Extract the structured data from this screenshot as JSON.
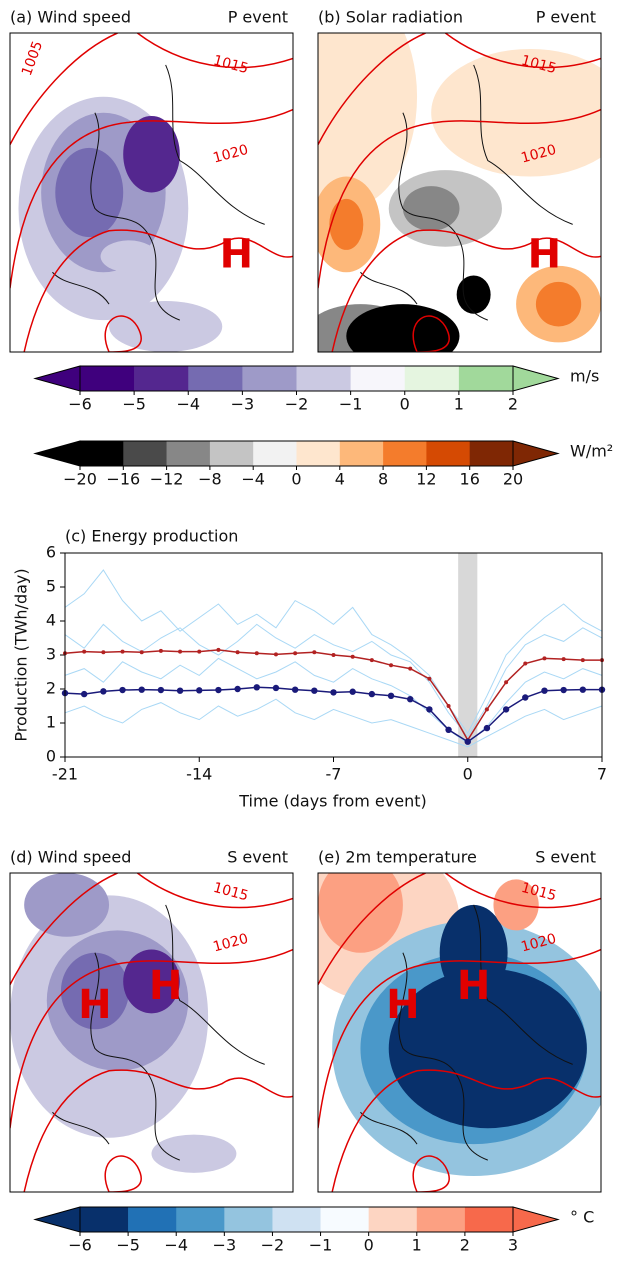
{
  "panels": [
    {
      "title": "(a) Wind speed",
      "event": "P event",
      "labels": [
        "1005",
        "1015",
        "1020"
      ],
      "markers": [
        "H"
      ]
    },
    {
      "title": "(b) Solar radiation",
      "event": "P event",
      "labels": [
        "1015",
        "1020"
      ],
      "markers": [
        "H"
      ]
    },
    {
      "title": "(d) Wind speed",
      "event": "S event",
      "labels": [
        "1015",
        "1020"
      ],
      "markers": [
        "H",
        "H"
      ]
    },
    {
      "title": "(e) 2m temperature",
      "event": "S event",
      "labels": [
        "1015",
        "1020"
      ],
      "markers": [
        "H",
        "H"
      ]
    }
  ],
  "colorbars": [
    {
      "unit": "m/s",
      "ticks": [
        {
          "value": -6,
          "label": "−6"
        },
        {
          "value": -5,
          "label": "−5"
        },
        {
          "value": -4,
          "label": "−4"
        },
        {
          "value": -3,
          "label": "−3"
        },
        {
          "value": -2,
          "label": "−2"
        },
        {
          "value": -1,
          "label": "−1"
        },
        0,
        1,
        2
      ],
      "colors": [
        "#3f007d",
        "#54278f",
        "#756bb1",
        "#9e9ac8",
        "#cbc9e2",
        "#f7f6fb",
        "#e5f5e0",
        "#a1d99b"
      ]
    },
    {
      "unit": "W/m²",
      "ticks": [
        {
          "value": -20,
          "label": "−20"
        },
        {
          "value": -16,
          "label": "−16"
        },
        {
          "value": -12,
          "label": "−12"
        },
        {
          "value": -8,
          "label": "−8"
        },
        {
          "value": -4,
          "label": "−4"
        },
        0,
        4,
        8,
        12,
        16,
        20
      ],
      "colors": [
        "#000000",
        "#4a4a4a",
        "#878787",
        "#c4c4c4",
        "#f2f2f2",
        "#fee6ce",
        "#fdb87a",
        "#f47c2c",
        "#d54a03",
        "#7f2704"
      ]
    },
    {
      "unit": "° C",
      "ticks": [
        {
          "value": -6,
          "label": "−6"
        },
        {
          "value": -5,
          "label": "−5"
        },
        {
          "value": -4,
          "label": "−4"
        },
        {
          "value": -3,
          "label": "−3"
        },
        {
          "value": -2,
          "label": "−2"
        },
        {
          "value": -1,
          "label": "−1"
        },
        0,
        1,
        2,
        3
      ],
      "colors": [
        "#08306b",
        "#2171b5",
        "#4a98c9",
        "#94c4df",
        "#cfe1f2",
        "#f7fbff",
        "#fdd5c2",
        "#fca082",
        "#f7694b"
      ]
    }
  ],
  "chart_data": {
    "type": "line",
    "title": "(c) Energy production",
    "x_label": "Time (days from event)",
    "y_label": "Production (TWh/day)",
    "x": [
      -21,
      -20,
      -19,
      -18,
      -17,
      -16,
      -15,
      -14,
      -13,
      -12,
      -11,
      -10,
      -9,
      -8,
      -7,
      -6,
      -5,
      -4,
      -3,
      -2,
      -1,
      0,
      1,
      2,
      3,
      4,
      5,
      6,
      7
    ],
    "xlim": [
      -21,
      7
    ],
    "xticks": [
      -21,
      -14,
      -7,
      0,
      7
    ],
    "ylim": [
      0,
      6
    ],
    "yticks": [
      0,
      1,
      2,
      3,
      4,
      5,
      6
    ],
    "event_span": [
      -0.5,
      0.5
    ],
    "series": [
      {
        "color": "#a9d8f5",
        "values": [
          3.6,
          3.2,
          3.9,
          3.4,
          3.1,
          3.5,
          3.8,
          3.3,
          3.0,
          3.4,
          3.9,
          3.5,
          3.2,
          3.6,
          3.3,
          3.1,
          3.4,
          3.0,
          2.8,
          2.2,
          1.3,
          0.6,
          1.5,
          2.6,
          3.3,
          3.6,
          3.4,
          3.8,
          3.5
        ]
      },
      {
        "color": "#a9d8f5",
        "values": [
          2.4,
          2.6,
          2.2,
          2.8,
          2.5,
          2.3,
          2.7,
          2.4,
          2.9,
          2.6,
          2.3,
          2.5,
          2.8,
          2.4,
          2.2,
          2.6,
          2.3,
          2.1,
          1.8,
          1.3,
          0.8,
          0.4,
          0.9,
          1.6,
          2.2,
          2.5,
          2.3,
          2.6,
          2.4
        ]
      },
      {
        "color": "#a9d8f5",
        "values": [
          1.3,
          1.5,
          1.2,
          1.0,
          1.4,
          1.6,
          1.3,
          1.1,
          1.5,
          1.2,
          1.4,
          1.7,
          1.3,
          1.1,
          1.4,
          1.2,
          1.0,
          1.1,
          0.9,
          0.7,
          0.5,
          0.3,
          0.6,
          0.9,
          1.2,
          1.4,
          1.1,
          1.3,
          1.5
        ]
      },
      {
        "color": "#a9d8f5",
        "values": [
          4.4,
          4.8,
          5.5,
          4.6,
          4.0,
          4.3,
          3.7,
          4.1,
          4.5,
          3.9,
          4.2,
          3.8,
          4.6,
          4.3,
          3.9,
          4.4,
          3.6,
          3.3,
          2.9,
          2.4,
          1.5,
          0.7,
          1.8,
          3.0,
          3.6,
          4.1,
          4.5,
          4.0,
          3.7
        ]
      },
      {
        "color": "#b22222",
        "values": [
          3.05,
          3.1,
          3.08,
          3.1,
          3.08,
          3.12,
          3.1,
          3.1,
          3.15,
          3.08,
          3.05,
          3.02,
          3.05,
          3.08,
          3.0,
          2.95,
          2.85,
          2.7,
          2.6,
          2.3,
          1.5,
          0.5,
          1.4,
          2.2,
          2.75,
          2.9,
          2.88,
          2.85,
          2.85
        ]
      },
      {
        "color": "#1a1a7a",
        "values": [
          1.88,
          1.85,
          1.93,
          1.97,
          1.98,
          1.97,
          1.95,
          1.96,
          1.97,
          2.0,
          2.05,
          2.03,
          1.98,
          1.95,
          1.9,
          1.92,
          1.85,
          1.8,
          1.7,
          1.4,
          0.8,
          0.45,
          0.85,
          1.4,
          1.75,
          1.95,
          1.97,
          1.98,
          1.98
        ]
      }
    ]
  }
}
